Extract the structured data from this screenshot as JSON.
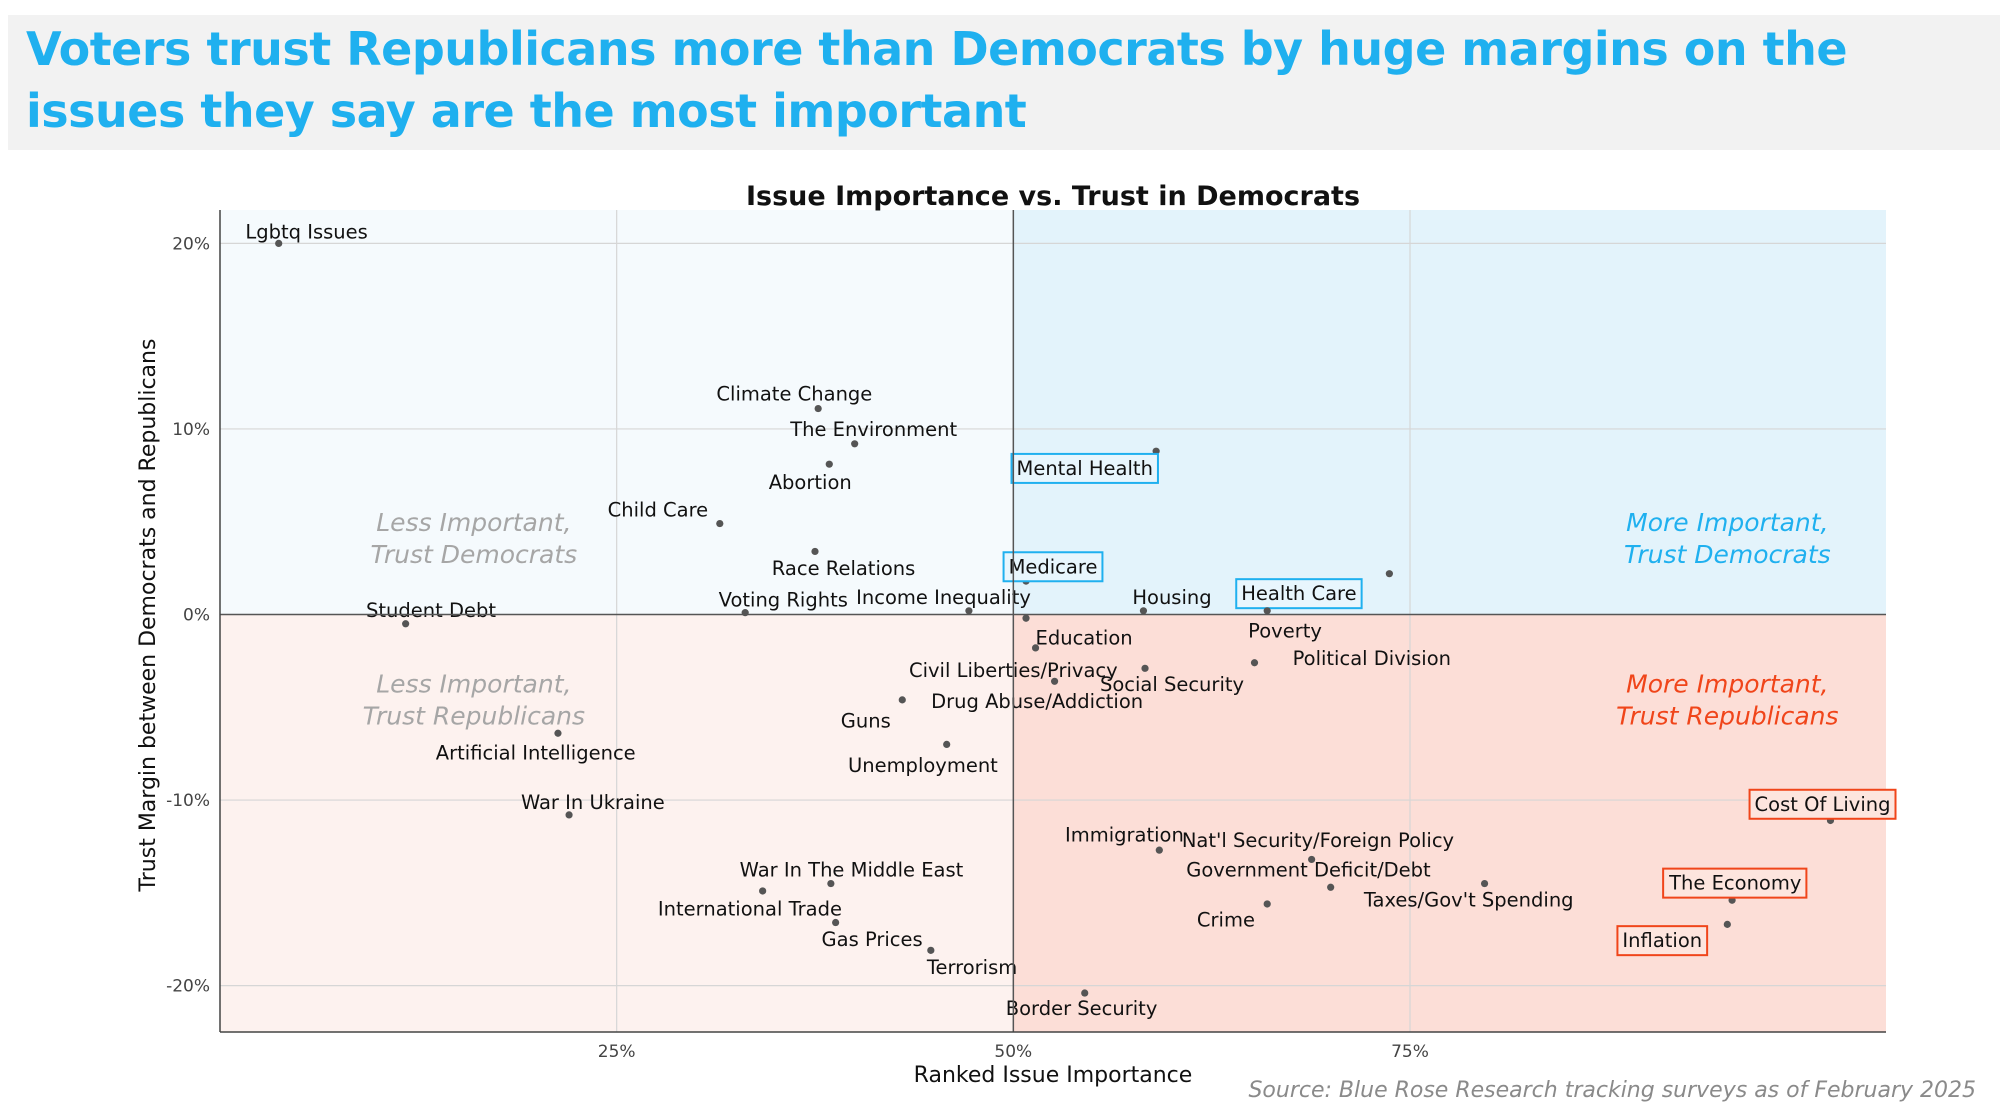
{
  "headline": "Voters trust Republicans more than Democrats by huge margins on the issues they say are the most important",
  "source": "Source: Blue Rose Research tracking surveys as of February 2025",
  "colors": {
    "headline": "#1fb0ef",
    "dem_quadrant": "#e3f3fb",
    "dem_quadrant_light": "#f5fafd",
    "rep_quadrant": "#fcded7",
    "rep_quadrant_light": "#fdf2ef",
    "dem_highlight": "#1fb0ef",
    "rep_highlight": "#f0451a",
    "point": "#555555"
  },
  "chart_data": {
    "type": "scatter",
    "title": "Issue Importance vs. Trust in Democrats",
    "xlabel": "Ranked Issue Importance",
    "ylabel": "Trust Margin between Democrats and Republicans",
    "xlim": [
      0,
      1.05
    ],
    "ylim": [
      -0.225,
      0.218
    ],
    "x_ticks": [
      {
        "value": 0.25,
        "label": "25%"
      },
      {
        "value": 0.5,
        "label": "50%"
      },
      {
        "value": 0.75,
        "label": "75%"
      }
    ],
    "y_ticks": [
      {
        "value": 0.2,
        "label": "20%"
      },
      {
        "value": 0.1,
        "label": "10%"
      },
      {
        "value": 0,
        "label": "0%"
      },
      {
        "value": -0.1,
        "label": "-10%"
      },
      {
        "value": -0.2,
        "label": "-20%"
      }
    ],
    "grid": true,
    "quadrant_labels": [
      {
        "text": [
          "Less Important,",
          "Trust Democrats"
        ],
        "x": 0.16,
        "y": 0.045,
        "style": "muted"
      },
      {
        "text": [
          "Less Important,",
          "Trust Republicans"
        ],
        "x": 0.16,
        "y": -0.042,
        "style": "muted"
      },
      {
        "text": [
          "More Important,",
          "Trust Democrats"
        ],
        "x": 0.95,
        "y": 0.045,
        "style": "dem"
      },
      {
        "text": [
          "More Important,",
          "Trust Republicans"
        ],
        "x": 0.95,
        "y": -0.042,
        "style": "rep"
      }
    ],
    "points": [
      {
        "label": "Lgbtq Issues",
        "x": 0.037,
        "y": 0.2,
        "lx": 0.016,
        "ly": 0.2065,
        "anchor": "start"
      },
      {
        "label": "Climate Change",
        "x": 0.377,
        "y": 0.111,
        "lx": 0.362,
        "ly": 0.119,
        "anchor": "middle"
      },
      {
        "label": "The Environment",
        "x": 0.4,
        "y": 0.092,
        "lx": 0.412,
        "ly": 0.1,
        "anchor": "middle"
      },
      {
        "label": "Abortion",
        "x": 0.384,
        "y": 0.081,
        "lx": 0.372,
        "ly": 0.0715,
        "anchor": "middle"
      },
      {
        "label": "Child Care",
        "x": 0.315,
        "y": 0.049,
        "lx": 0.276,
        "ly": 0.0565,
        "anchor": "middle"
      },
      {
        "label": "Race Relations",
        "x": 0.375,
        "y": 0.034,
        "lx": 0.393,
        "ly": 0.025,
        "anchor": "middle"
      },
      {
        "label": "Voting Rights",
        "x": 0.331,
        "y": 0.001,
        "lx": 0.355,
        "ly": 0.008,
        "anchor": "middle"
      },
      {
        "label": "Student Debt",
        "x": 0.117,
        "y": -0.005,
        "lx": 0.133,
        "ly": 0.0025,
        "anchor": "middle"
      },
      {
        "label": "Income Inequality",
        "x": 0.472,
        "y": 0.002,
        "lx": 0.456,
        "ly": 0.0095,
        "anchor": "middle"
      },
      {
        "label": "Mental Health",
        "x": 0.59,
        "y": 0.088,
        "lx": 0.545,
        "ly": 0.079,
        "anchor": "middle",
        "highlight": "dem"
      },
      {
        "label": "Medicare",
        "x": 0.508,
        "y": 0.018,
        "lx": 0.525,
        "ly": 0.026,
        "anchor": "middle",
        "highlight": "dem"
      },
      {
        "label": "Health Care",
        "x": 0.737,
        "y": 0.022,
        "lx": 0.68,
        "ly": 0.0115,
        "anchor": "middle",
        "highlight": "dem"
      },
      {
        "label": "Housing",
        "x": 0.582,
        "y": 0.002,
        "lx": 0.6,
        "ly": 0.0095,
        "anchor": "middle"
      },
      {
        "label": "Poverty",
        "x": 0.66,
        "y": 0.002,
        "lx": 0.648,
        "ly": -0.0085,
        "anchor": "start"
      },
      {
        "label": "Education",
        "x": 0.508,
        "y": -0.002,
        "lx": 0.514,
        "ly": -0.0125,
        "anchor": "start"
      },
      {
        "label": "Civil Liberties/Privacy",
        "x": 0.514,
        "y": -0.018,
        "lx": 0.5,
        "ly": -0.03,
        "anchor": "middle"
      },
      {
        "label": "Political Division",
        "x": 0.652,
        "y": -0.026,
        "lx": 0.676,
        "ly": -0.0235,
        "anchor": "start"
      },
      {
        "label": "Social Security",
        "x": 0.583,
        "y": -0.029,
        "lx": 0.6,
        "ly": -0.0375,
        "anchor": "middle"
      },
      {
        "label": "Drug Abuse/Addiction",
        "x": 0.526,
        "y": -0.036,
        "lx": 0.515,
        "ly": -0.0465,
        "anchor": "middle"
      },
      {
        "label": "Guns",
        "x": 0.43,
        "y": -0.046,
        "lx": 0.407,
        "ly": -0.057,
        "anchor": "middle"
      },
      {
        "label": "Artificial Intelligence",
        "x": 0.213,
        "y": -0.064,
        "lx": 0.199,
        "ly": -0.0745,
        "anchor": "middle"
      },
      {
        "label": "Unemployment",
        "x": 0.458,
        "y": -0.07,
        "lx": 0.443,
        "ly": -0.081,
        "anchor": "middle"
      },
      {
        "label": "War In Ukraine",
        "x": 0.22,
        "y": -0.108,
        "lx": 0.235,
        "ly": -0.101,
        "anchor": "middle"
      },
      {
        "label": "Immigration",
        "x": 0.592,
        "y": -0.127,
        "lx": 0.57,
        "ly": -0.1185,
        "anchor": "middle"
      },
      {
        "label": "Nat'l Security/Foreign Policy",
        "x": 0.688,
        "y": -0.132,
        "lx": 0.692,
        "ly": -0.1215,
        "anchor": "middle"
      },
      {
        "label": "Government Deficit/Debt",
        "x": 0.7,
        "y": -0.147,
        "lx": 0.686,
        "ly": -0.1375,
        "anchor": "middle"
      },
      {
        "label": "Taxes/Gov't Spending",
        "x": 0.797,
        "y": -0.145,
        "lx": 0.787,
        "ly": -0.1535,
        "anchor": "middle"
      },
      {
        "label": "Crime",
        "x": 0.66,
        "y": -0.156,
        "lx": 0.634,
        "ly": -0.1645,
        "anchor": "middle"
      },
      {
        "label": "War In The Middle East",
        "x": 0.385,
        "y": -0.145,
        "lx": 0.398,
        "ly": -0.1375,
        "anchor": "middle"
      },
      {
        "label": "International Trade",
        "x": 0.342,
        "y": -0.149,
        "lx": 0.334,
        "ly": -0.1585,
        "anchor": "middle"
      },
      {
        "label": "Gas Prices",
        "x": 0.388,
        "y": -0.166,
        "lx": 0.411,
        "ly": -0.175,
        "anchor": "middle"
      },
      {
        "label": "Terrorism",
        "x": 0.448,
        "y": -0.181,
        "lx": 0.474,
        "ly": -0.19,
        "anchor": "middle"
      },
      {
        "label": "Border Security",
        "x": 0.545,
        "y": -0.204,
        "lx": 0.543,
        "ly": -0.212,
        "anchor": "middle"
      },
      {
        "label": "Cost Of Living",
        "x": 1.015,
        "y": -0.111,
        "lx": 1.01,
        "ly": -0.102,
        "anchor": "middle",
        "highlight": "rep"
      },
      {
        "label": "The Economy",
        "x": 0.953,
        "y": -0.154,
        "lx": 0.955,
        "ly": -0.1445,
        "anchor": "middle",
        "highlight": "rep"
      },
      {
        "label": "Inflation",
        "x": 0.95,
        "y": -0.167,
        "lx": 0.909,
        "ly": -0.1755,
        "anchor": "middle",
        "highlight": "rep"
      }
    ]
  }
}
